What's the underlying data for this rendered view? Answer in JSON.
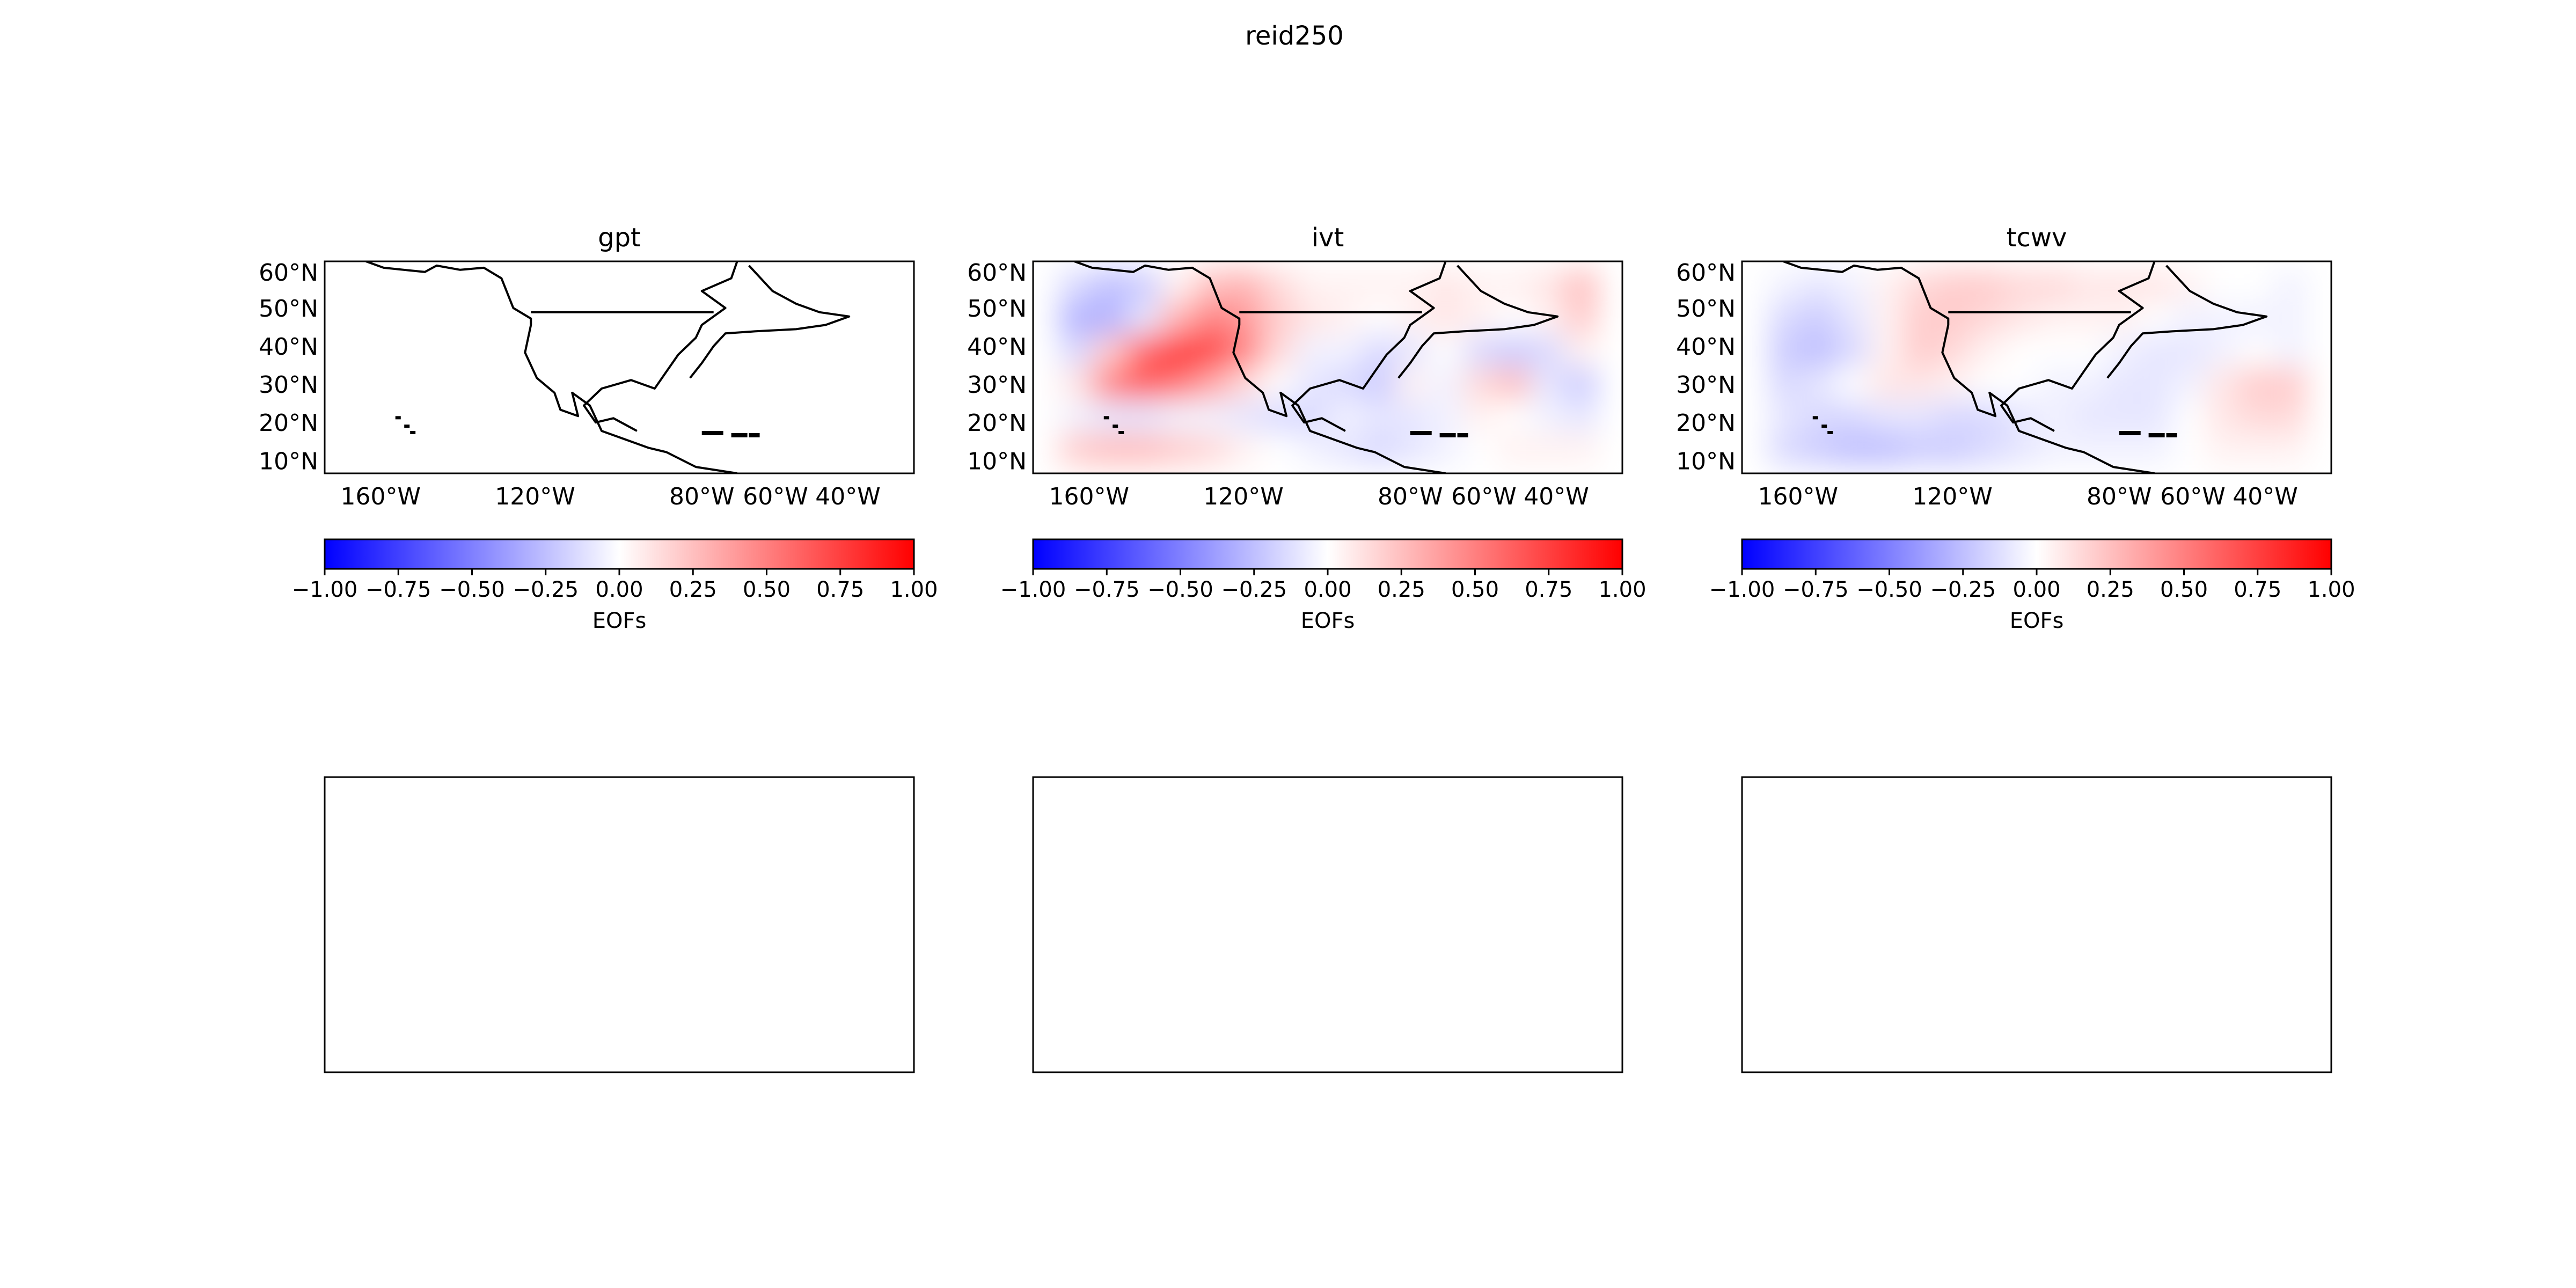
{
  "figure": {
    "suptitle": "reid250"
  },
  "chart_data": [
    {
      "type": "heatmap",
      "title": "gpt",
      "xticks": [
        "160°W",
        "120°W",
        "80°W",
        "60°W",
        "40°W"
      ],
      "yticks": [
        "60°N",
        "50°N",
        "40°N",
        "30°N",
        "20°N",
        "10°N"
      ],
      "colorbar": {
        "label": "EOFs",
        "ticks": [
          "−1.00",
          "−0.75",
          "−0.50",
          "−0.25",
          "0.00",
          "0.25",
          "0.50",
          "0.75",
          "1.00"
        ],
        "range": [
          -1,
          1
        ],
        "cmap": [
          "#0000ff",
          "#ffffff",
          "#ff0000"
        ]
      },
      "field": [
        [
          0.0,
          0.0,
          0.0,
          0.0,
          0.0,
          0.0,
          0.0,
          0.0,
          0.0,
          0.0,
          0.0,
          0.0,
          0.0,
          0.0,
          0.0,
          0.0
        ],
        [
          0.0,
          0.0,
          0.0,
          0.0,
          0.0,
          0.0,
          0.0,
          0.0,
          0.0,
          0.0,
          0.0,
          0.0,
          0.0,
          0.0,
          0.0,
          0.0
        ],
        [
          0.0,
          0.0,
          0.0,
          0.0,
          0.0,
          0.0,
          0.0,
          0.0,
          0.0,
          0.0,
          0.0,
          0.0,
          0.0,
          0.0,
          0.0,
          0.0
        ],
        [
          0.0,
          0.0,
          0.0,
          0.0,
          0.0,
          0.0,
          0.0,
          0.0,
          0.0,
          0.0,
          0.0,
          0.0,
          0.0,
          0.0,
          0.0,
          0.0
        ],
        [
          0.0,
          0.0,
          0.0,
          0.0,
          0.0,
          0.0,
          0.0,
          0.0,
          0.0,
          0.0,
          0.0,
          0.0,
          0.0,
          0.0,
          0.0,
          0.0
        ],
        [
          0.0,
          0.0,
          0.0,
          0.0,
          0.0,
          0.0,
          0.0,
          0.0,
          0.0,
          0.0,
          0.0,
          0.0,
          0.0,
          0.0,
          0.0,
          0.0
        ]
      ]
    },
    {
      "type": "heatmap",
      "title": "ivt",
      "xticks": [
        "160°W",
        "120°W",
        "80°W",
        "60°W",
        "40°W"
      ],
      "yticks": [
        "60°N",
        "50°N",
        "40°N",
        "30°N",
        "20°N",
        "10°N"
      ],
      "colorbar": {
        "label": "EOFs",
        "ticks": [
          "−1.00",
          "−0.75",
          "−0.50",
          "−0.25",
          "0.00",
          "0.25",
          "0.50",
          "0.75",
          "1.00"
        ],
        "range": [
          -1,
          1
        ],
        "cmap": [
          "#0000ff",
          "#ffffff",
          "#ff0000"
        ]
      },
      "field": [
        [
          -0.15,
          -0.25,
          -0.2,
          0.05,
          0.25,
          0.3,
          0.15,
          0.05,
          0.05,
          0.05,
          0.05,
          0.1,
          0.05,
          0.05,
          0.1,
          0.25
        ],
        [
          -0.3,
          -0.3,
          -0.1,
          0.3,
          0.5,
          0.4,
          0.2,
          0.1,
          0.05,
          0.0,
          0.05,
          0.1,
          0.05,
          0.0,
          0.05,
          0.2
        ],
        [
          -0.15,
          0.2,
          0.6,
          0.8,
          0.75,
          0.5,
          0.15,
          -0.05,
          -0.05,
          -0.15,
          -0.1,
          0.0,
          -0.15,
          -0.2,
          -0.15,
          0.05
        ],
        [
          0.1,
          0.5,
          0.65,
          0.55,
          0.35,
          0.15,
          0.0,
          -0.1,
          -0.15,
          -0.2,
          0.05,
          -0.05,
          0.15,
          0.25,
          -0.1,
          -0.2
        ],
        [
          -0.05,
          -0.1,
          -0.1,
          -0.05,
          -0.05,
          -0.1,
          -0.15,
          -0.15,
          -0.05,
          -0.1,
          -0.1,
          -0.05,
          0.05,
          0.0,
          -0.05,
          -0.1
        ],
        [
          0.2,
          0.25,
          0.25,
          0.2,
          0.15,
          0.05,
          0.0,
          -0.05,
          -0.1,
          -0.15,
          -0.1,
          -0.05,
          0.0,
          0.05,
          0.05,
          0.05
        ]
      ]
    },
    {
      "type": "heatmap",
      "title": "tcwv",
      "xticks": [
        "160°W",
        "120°W",
        "80°W",
        "60°W",
        "40°W"
      ],
      "yticks": [
        "60°N",
        "50°N",
        "40°N",
        "30°N",
        "20°N",
        "10°N"
      ],
      "colorbar": {
        "label": "EOFs",
        "ticks": [
          "−1.00",
          "−0.75",
          "−0.50",
          "−0.25",
          "0.00",
          "0.25",
          "0.50",
          "0.75",
          "1.00"
        ],
        "range": [
          -1,
          1
        ],
        "cmap": [
          "#0000ff",
          "#ffffff",
          "#ff0000"
        ]
      },
      "field": [
        [
          -0.05,
          -0.1,
          -0.05,
          0.05,
          0.15,
          0.2,
          0.2,
          0.15,
          0.15,
          0.1,
          0.1,
          0.1,
          0.05,
          0.0,
          0.0,
          -0.05
        ],
        [
          -0.15,
          -0.2,
          -0.1,
          0.05,
          0.2,
          0.2,
          0.15,
          0.1,
          0.05,
          0.05,
          0.05,
          0.0,
          -0.05,
          -0.05,
          -0.05,
          -0.05
        ],
        [
          -0.2,
          -0.25,
          -0.15,
          0.05,
          0.2,
          0.15,
          0.05,
          0.0,
          0.0,
          0.0,
          -0.05,
          -0.1,
          -0.1,
          -0.05,
          0.0,
          -0.05
        ],
        [
          -0.15,
          -0.1,
          0.0,
          0.1,
          0.1,
          0.05,
          0.0,
          0.0,
          -0.05,
          -0.05,
          -0.1,
          -0.1,
          -0.05,
          0.1,
          0.2,
          0.2
        ],
        [
          -0.1,
          -0.15,
          -0.15,
          -0.1,
          -0.1,
          -0.15,
          -0.15,
          -0.1,
          -0.05,
          -0.1,
          -0.1,
          -0.1,
          0.0,
          0.1,
          0.15,
          0.15
        ],
        [
          -0.15,
          -0.2,
          -0.25,
          -0.25,
          -0.2,
          -0.2,
          -0.15,
          -0.1,
          -0.05,
          -0.05,
          -0.05,
          -0.05,
          0.0,
          0.05,
          0.05,
          0.05
        ]
      ]
    }
  ]
}
